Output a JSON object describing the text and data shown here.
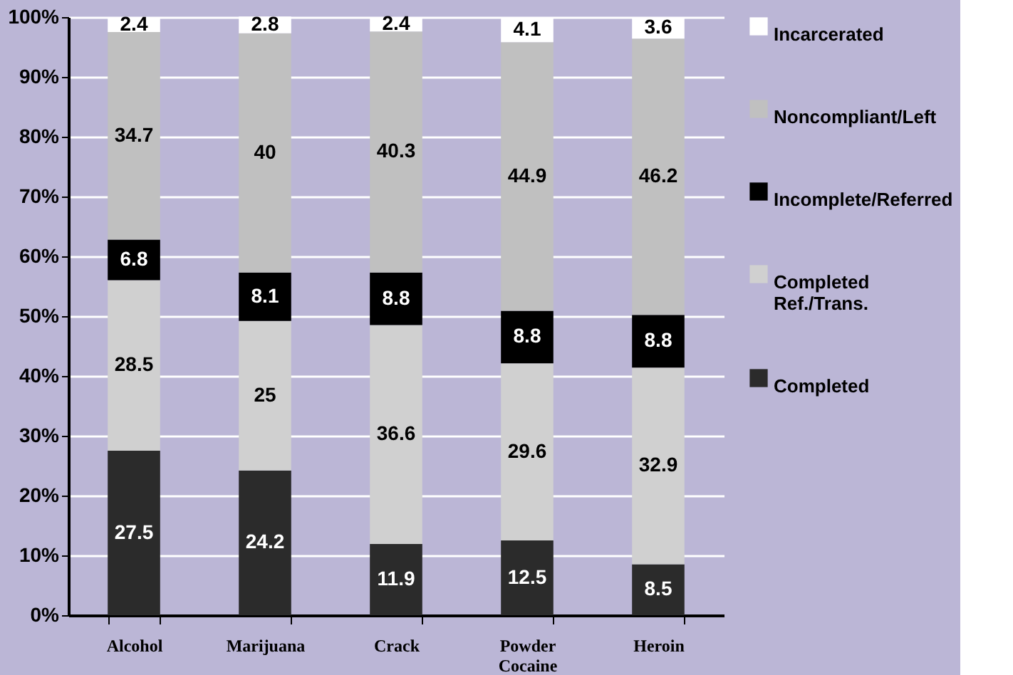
{
  "chart_data": {
    "type": "bar",
    "stacked": true,
    "data_labels": true,
    "categories": [
      "Alcohol",
      "Marijuana",
      "Crack",
      "Powder Cocaine",
      "Heroin"
    ],
    "series": [
      {
        "name": "Completed",
        "color": "#2b2b2b",
        "values": [
          27.5,
          24.2,
          11.9,
          12.5,
          8.5
        ]
      },
      {
        "name": "Completed Ref./Trans.",
        "color": "#d0d0d0",
        "values": [
          28.5,
          25,
          36.6,
          29.6,
          32.9
        ]
      },
      {
        "name": "Incomplete/Referred",
        "color": "#000000",
        "values": [
          6.8,
          8.1,
          8.8,
          8.8,
          8.8
        ]
      },
      {
        "name": "Noncompliant/Left",
        "color": "#c0c0c0",
        "values": [
          34.7,
          40,
          40.3,
          44.9,
          46.2
        ]
      },
      {
        "name": "Incarcerated",
        "color": "#ffffff",
        "values": [
          2.4,
          2.8,
          2.4,
          4.1,
          3.6
        ]
      }
    ],
    "ylim": [
      0,
      100
    ],
    "yticks": [
      {
        "value": 0,
        "label": "0%"
      },
      {
        "value": 10,
        "label": "10%"
      },
      {
        "value": 20,
        "label": "20%"
      },
      {
        "value": 30,
        "label": "30%"
      },
      {
        "value": 40,
        "label": "40%"
      },
      {
        "value": 50,
        "label": "50%"
      },
      {
        "value": 60,
        "label": "60%"
      },
      {
        "value": 70,
        "label": "70%"
      },
      {
        "value": 80,
        "label": "80%"
      },
      {
        "value": 90,
        "label": "90%"
      },
      {
        "value": 100,
        "label": "100%"
      }
    ],
    "grid": "y",
    "legend": "right"
  }
}
